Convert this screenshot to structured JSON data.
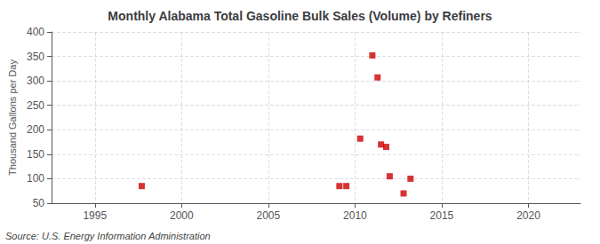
{
  "chart_data": {
    "type": "scatter",
    "title": "Monthly Alabama Total Gasoline Bulk Sales (Volume) by Refiners",
    "ylabel": "Thousand Gallons per Day",
    "annotation": "Source: U.S. Energy Information Administration",
    "x": [
      1997.7,
      2009.1,
      2009.5,
      2010.3,
      2011.0,
      2011.3,
      2011.5,
      2011.8,
      2012.0,
      2012.8,
      2013.2
    ],
    "values": [
      85,
      85,
      85,
      182,
      352,
      307,
      170,
      165,
      105,
      70,
      100
    ],
    "color": "#cc0000",
    "marker": "square",
    "xlim": [
      1992.5,
      2023
    ],
    "xticks": [
      1995,
      2000,
      2005,
      2010,
      2015,
      2020
    ],
    "ylim": [
      50,
      400
    ],
    "yticks": [
      50,
      100,
      150,
      200,
      250,
      300,
      350,
      400
    ],
    "grid": true
  }
}
